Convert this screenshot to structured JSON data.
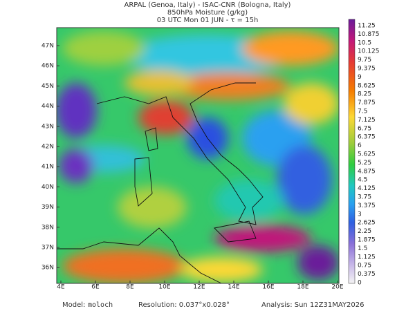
{
  "header": {
    "line1": "ARPAL (Genoa, Italy)  -  ISAC-CNR (Bologna, Italy)",
    "line2": "850hPa Moisture (g/kg)",
    "line3": "03 UTC Mon 01 JUN  -  τ = 15h"
  },
  "lat_labels": [
    "47N",
    "46N",
    "45N",
    "44N",
    "43N",
    "42N",
    "41N",
    "40N",
    "39N",
    "38N",
    "37N",
    "36N"
  ],
  "lon_labels": [
    "4E",
    "6E",
    "8E",
    "10E",
    "12E",
    "14E",
    "16E",
    "18E",
    "20E"
  ],
  "colorbar_labels": [
    "11.25",
    "10.875",
    "10.5",
    "10.125",
    "9.75",
    "9.375",
    "9",
    "8.625",
    "8.25",
    "7.875",
    "7.5",
    "7.125",
    "6.75",
    "6.375",
    "6",
    "5.625",
    "5.25",
    "4.875",
    "4.5",
    "4.125",
    "3.75",
    "3.375",
    "3",
    "2.625",
    "2.25",
    "1.875",
    "1.5",
    "1.125",
    "0.75",
    "0.375",
    "0"
  ],
  "footer": {
    "model_label": "Model:",
    "model": "moloch",
    "resolution": "Resolution: 0.037°x0.028°",
    "analysis": "Analysis: Sun 12Z31MAY2026"
  }
}
